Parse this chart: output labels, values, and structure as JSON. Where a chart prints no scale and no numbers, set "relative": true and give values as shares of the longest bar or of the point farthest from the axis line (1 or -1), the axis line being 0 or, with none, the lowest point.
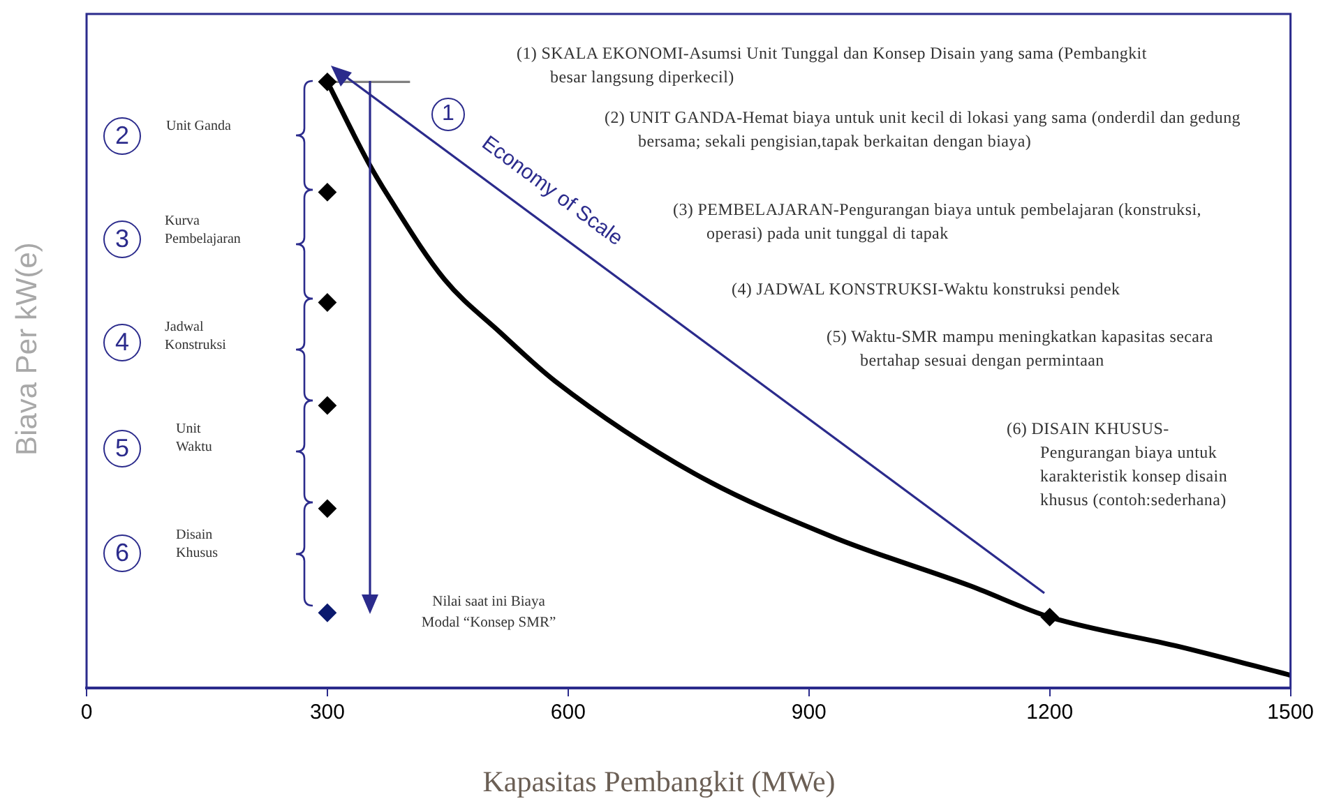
{
  "chart_data": {
    "type": "line",
    "relative": true,
    "xlabel": "Kapasitas Pembangkit (MWe)",
    "ylabel": "Biava Per kW(e)",
    "xlim": [
      0,
      1500
    ],
    "xticks": [
      0,
      300,
      600,
      900,
      1200,
      1500
    ],
    "grid": false,
    "legend": false,
    "tick_labels": "x",
    "series": [
      {
        "type": "line",
        "color": "#000000",
        "marker": "none",
        "x": [
          300,
          351,
          377,
          446,
          515,
          584,
          757,
          930,
          1102,
          1200,
          1362,
          1500
        ],
        "values": [
          1,
          0.867,
          0.809,
          0.674,
          0.587,
          0.506,
          0.354,
          0.249,
          0.168,
          0.117,
          0.068,
          0.021
        ]
      },
      {
        "type": "scatter",
        "color": "#000000",
        "marker": "diamond",
        "colors": [
          "#000000",
          "#000000",
          "#000000",
          "#000000",
          "#000000",
          "#0b1a6e",
          "#000000"
        ],
        "x": [
          300,
          300,
          300,
          300,
          300,
          300,
          1200
        ],
        "values": [
          1,
          0.818,
          0.636,
          0.466,
          0.296,
          0.124,
          0.117
        ]
      },
      {
        "type": "line",
        "color": "#808080",
        "marker": "none",
        "x": [
          300,
          403
        ],
        "values": [
          1,
          1
        ]
      }
    ],
    "annotations": [
      "1",
      "Economy of Scale",
      "2",
      "Unit Ganda",
      "3",
      "Kurva Pembelajaran",
      "4",
      "Jadwal Konstruksi",
      "5",
      "Unit Waktu",
      "6",
      "Disain Khusus",
      "(1) SKALA EKONOMI-Asumsi Unit Tunggal dan Konsep Disain yang sama (Pembangkit besar langsung diperkecil)",
      "(2) UNIT GANDA-Hemat biaya untuk unit kecil di lokasi yang sama (onderdil dan gedung bersama; sekali pengisian,tapak berkaitan dengan biaya)",
      "(3) PEMBELAJARAN-Pengurangan biaya untuk pembelajaran (konstruksi, operasi) pada unit tunggal di tapak",
      "(4) JADWAL KONSTRUKSI-Waktu konstruksi pendek",
      "(5) Waktu-SMR mampu meningkatkan kapasitas secara bertahap sesuai dengan permintaan",
      "(6) DISAIN KHUSUS-Pengurangan biaya untuk karakteristik konsep disain khusus (contoh:sederhana)",
      "Nilai saat ini Biaya Modal “Konsep SMR”"
    ]
  }
}
